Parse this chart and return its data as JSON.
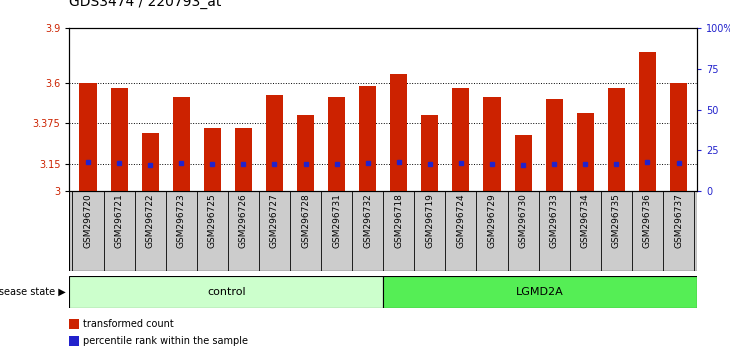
{
  "title": "GDS3474 / 220793_at",
  "samples": [
    "GSM296720",
    "GSM296721",
    "GSM296722",
    "GSM296723",
    "GSM296725",
    "GSM296726",
    "GSM296727",
    "GSM296728",
    "GSM296731",
    "GSM296732",
    "GSM296718",
    "GSM296719",
    "GSM296724",
    "GSM296729",
    "GSM296730",
    "GSM296733",
    "GSM296734",
    "GSM296735",
    "GSM296736",
    "GSM296737"
  ],
  "bar_values": [
    3.6,
    3.57,
    3.32,
    3.52,
    3.35,
    3.35,
    3.53,
    3.42,
    3.52,
    3.58,
    3.65,
    3.42,
    3.57,
    3.52,
    3.31,
    3.51,
    3.43,
    3.57,
    3.77,
    3.6
  ],
  "dot_values": [
    3.163,
    3.155,
    3.145,
    3.158,
    3.148,
    3.15,
    3.15,
    3.15,
    3.15,
    3.155,
    3.162,
    3.15,
    3.155,
    3.15,
    3.145,
    3.15,
    3.15,
    3.15,
    3.163,
    3.158
  ],
  "y_min": 3.0,
  "y_max": 3.9,
  "y_ticks": [
    3.0,
    3.15,
    3.375,
    3.6,
    3.9
  ],
  "y_tick_labels": [
    "3",
    "3.15",
    "3.375",
    "3.6",
    "3.9"
  ],
  "y2_ticks": [
    0,
    25,
    50,
    75,
    100
  ],
  "y2_tick_labels": [
    "0",
    "25",
    "50",
    "75",
    "100%"
  ],
  "bar_color": "#cc2200",
  "dot_color": "#2222cc",
  "control_count": 10,
  "lgmd2a_count": 10,
  "control_label": "control",
  "lgmd2a_label": "LGMD2A",
  "disease_state_label": "disease state",
  "legend_bar_label": "transformed count",
  "legend_dot_label": "percentile rank within the sample",
  "control_color": "#ccffcc",
  "lgmd2a_color": "#55ee55",
  "tick_label_color_left": "#cc2200",
  "tick_label_color_right": "#2222cc",
  "title_fontsize": 10,
  "axis_fontsize": 7,
  "xtick_fontsize": 6.5,
  "label_fontsize": 8
}
